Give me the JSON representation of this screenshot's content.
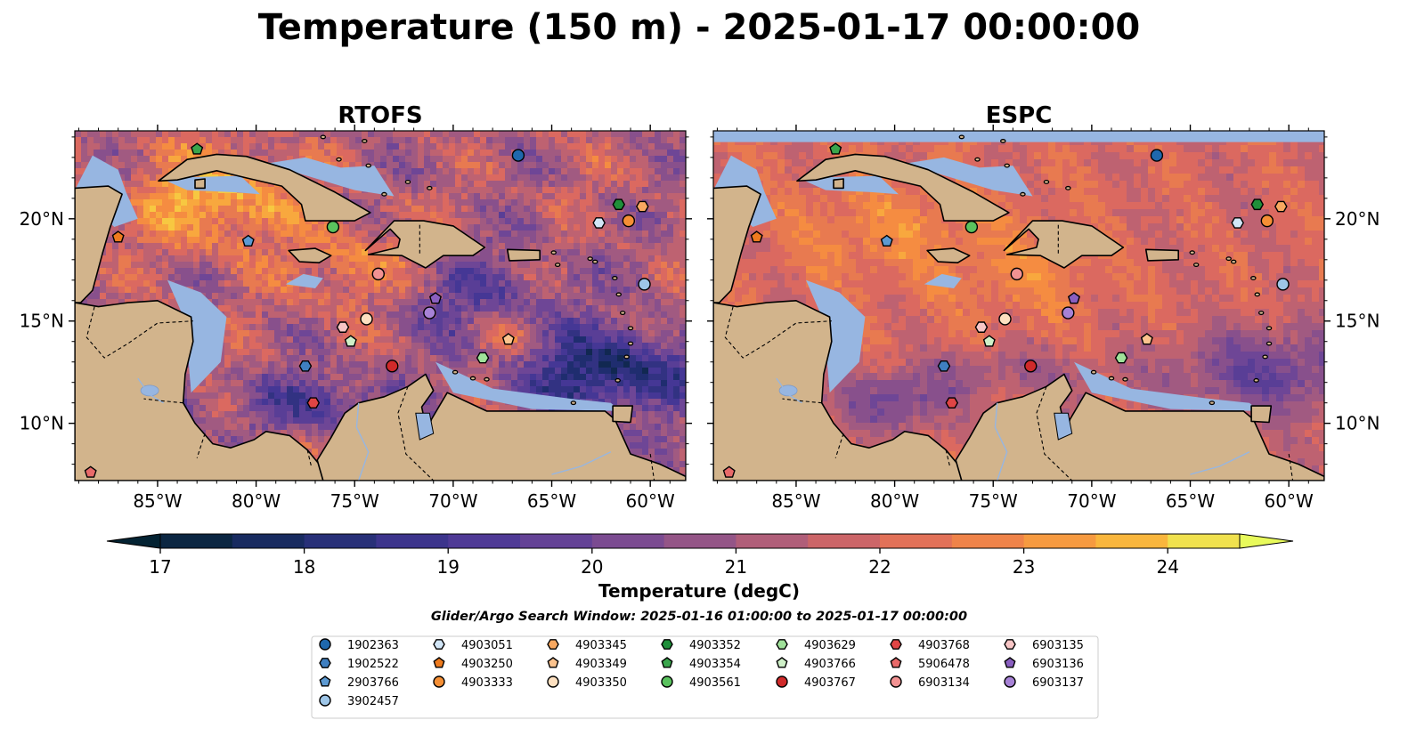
{
  "title": "Temperature (150 m) - 2025-01-17 00:00:00",
  "panels": [
    {
      "name": "RTOFS",
      "style": "rtofs"
    },
    {
      "name": "ESPC",
      "style": "espc"
    }
  ],
  "map": {
    "lon_range": [
      -89.2,
      -58.2
    ],
    "lat_range": [
      7.2,
      24.3
    ],
    "lon_ticks": [
      -85,
      -80,
      -75,
      -70,
      -65,
      -60
    ],
    "lon_tick_labels": [
      "85°W",
      "80°W",
      "75°W",
      "70°W",
      "65°W",
      "60°W"
    ],
    "lat_ticks": [
      10,
      15,
      20
    ],
    "lat_tick_labels": [
      "10°N",
      "15°N",
      "20°N"
    ],
    "colors": {
      "land": "#d2b48c",
      "ocean": "#97b6e1",
      "deep_water": "#04263a"
    }
  },
  "colorbar": {
    "label": "Temperature (degC)",
    "ticks": [
      17,
      18,
      19,
      20,
      21,
      22,
      23,
      24
    ],
    "tick_labels": [
      "17",
      "18",
      "19",
      "20",
      "21",
      "22",
      "23",
      "24"
    ],
    "range": [
      17,
      24.5
    ],
    "step": 0.5,
    "extend": "both",
    "colormap": "thermal"
  },
  "search_window": "Glider/Argo Search Window: 2025-01-16 01:00:00 to 2025-01-17 00:00:00",
  "legend": {
    "columns": [
      [
        {
          "label": "1902363",
          "marker": "circle",
          "color": "#1f68ad"
        },
        {
          "label": "1902522",
          "marker": "hexagon",
          "color": "#3f7fc0"
        },
        {
          "label": "2903766",
          "marker": "pentagon",
          "color": "#5d9ad2"
        },
        {
          "label": "3902457",
          "marker": "circle",
          "color": "#9ec6e8"
        }
      ],
      [
        {
          "label": "4903051",
          "marker": "hexagon",
          "color": "#d2e6f7"
        },
        {
          "label": "4903250",
          "marker": "pentagon",
          "color": "#ee7b1e"
        },
        {
          "label": "4903333",
          "marker": "circle",
          "color": "#f58f35"
        }
      ],
      [
        {
          "label": "4903345",
          "marker": "hexagon",
          "color": "#f8a860"
        },
        {
          "label": "4903349",
          "marker": "pentagon",
          "color": "#fbc38e"
        },
        {
          "label": "4903350",
          "marker": "circle",
          "color": "#fde0c0"
        }
      ],
      [
        {
          "label": "4903352",
          "marker": "hexagon",
          "color": "#1f8f3a"
        },
        {
          "label": "4903354",
          "marker": "pentagon",
          "color": "#3aa54c"
        },
        {
          "label": "4903561",
          "marker": "circle",
          "color": "#5ac25e"
        }
      ],
      [
        {
          "label": "4903629",
          "marker": "hexagon",
          "color": "#a0e29a"
        },
        {
          "label": "4903766",
          "marker": "pentagon",
          "color": "#cff0c8"
        },
        {
          "label": "4903767",
          "marker": "circle",
          "color": "#d02a2a"
        }
      ],
      [
        {
          "label": "4903768",
          "marker": "hexagon",
          "color": "#e04545"
        },
        {
          "label": "5906478",
          "marker": "pentagon",
          "color": "#e86a6a"
        },
        {
          "label": "6903134",
          "marker": "circle",
          "color": "#f29292"
        }
      ],
      [
        {
          "label": "6903135",
          "marker": "hexagon",
          "color": "#f8c6c6"
        },
        {
          "label": "6903136",
          "marker": "pentagon",
          "color": "#8a5fc0"
        },
        {
          "label": "6903137",
          "marker": "circle",
          "color": "#a782d6"
        }
      ]
    ]
  },
  "floats": [
    {
      "id": "1902363",
      "lon": -66.7,
      "lat": 23.1
    },
    {
      "id": "4903352",
      "lon": -61.6,
      "lat": 20.7
    },
    {
      "id": "4903345",
      "lon": -60.4,
      "lat": 20.6
    },
    {
      "id": "4903051",
      "lon": -62.6,
      "lat": 19.8
    },
    {
      "id": "4903333",
      "lon": -61.1,
      "lat": 19.9
    },
    {
      "id": "3902457",
      "lon": -60.3,
      "lat": 16.8
    },
    {
      "id": "4903354",
      "lon": -83.0,
      "lat": 23.4
    },
    {
      "id": "4903250",
      "lon": -87.0,
      "lat": 19.1
    },
    {
      "id": "2903766",
      "lon": -80.4,
      "lat": 18.9
    },
    {
      "id": "4903561",
      "lon": -76.1,
      "lat": 19.6
    },
    {
      "id": "6903134",
      "lon": -73.8,
      "lat": 17.3
    },
    {
      "id": "6903136",
      "lon": -70.9,
      "lat": 16.1
    },
    {
      "id": "6903137",
      "lon": -71.2,
      "lat": 15.4
    },
    {
      "id": "4903350",
      "lon": -74.4,
      "lat": 15.1
    },
    {
      "id": "6903135",
      "lon": -75.6,
      "lat": 14.7
    },
    {
      "id": "4903766",
      "lon": -75.2,
      "lat": 14.0
    },
    {
      "id": "4903349",
      "lon": -67.2,
      "lat": 14.1
    },
    {
      "id": "4903629",
      "lon": -68.5,
      "lat": 13.2
    },
    {
      "id": "1902522",
      "lon": -77.5,
      "lat": 12.8
    },
    {
      "id": "4903767",
      "lon": -73.1,
      "lat": 12.8
    },
    {
      "id": "4903768",
      "lon": -77.1,
      "lat": 11.0
    },
    {
      "id": "5906478",
      "lon": -88.4,
      "lat": 7.6
    }
  ]
}
